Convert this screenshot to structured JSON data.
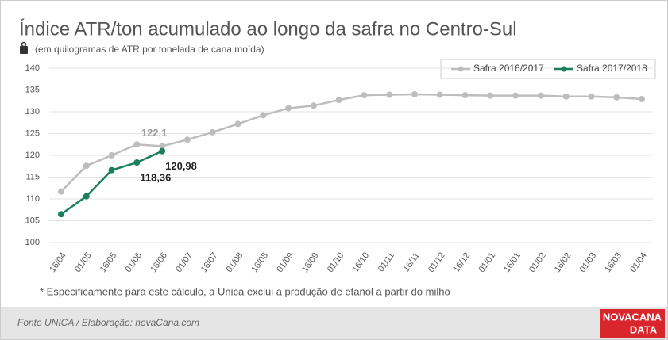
{
  "chart_data": {
    "type": "line",
    "title": "Índice ATR/ton acumulado ao longo da safra no Centro-Sul",
    "subtitle": "(em quilogramas de ATR por tonelada de cana moída)",
    "note": "* Especificamente para este cálculo, a Unica exclui a produção de etanol a partir do milho",
    "source": "Fonte UNICA / Elaboração: novaCana.com",
    "logo": [
      "NOVACANA",
      "DATA"
    ],
    "categories": [
      "16/04",
      "01/05",
      "16/05",
      "01/06",
      "16/06",
      "01/07",
      "16/07",
      "01/08",
      "16/08",
      "01/09",
      "16/09",
      "01/10",
      "16/10",
      "01/11",
      "16/11",
      "01/12",
      "16/12",
      "01/01",
      "16/01",
      "01/02",
      "16/02",
      "01/03",
      "16/03",
      "01/04"
    ],
    "series": [
      {
        "name": "Safra 2016/2017",
        "color": "#bdbdbd",
        "values": [
          111.7,
          117.6,
          120.0,
          122.5,
          122.1,
          123.6,
          125.3,
          127.2,
          129.2,
          130.8,
          131.4,
          132.7,
          133.8,
          133.9,
          134.0,
          133.9,
          133.8,
          133.7,
          133.7,
          133.7,
          133.5,
          133.5,
          133.3,
          132.9
        ],
        "value_labels": [
          null,
          null,
          null,
          null,
          "122,1",
          null,
          null,
          null,
          null,
          null,
          null,
          null,
          null,
          null,
          null,
          null,
          null,
          null,
          null,
          null,
          null,
          null,
          null,
          null
        ]
      },
      {
        "name": "Safra 2017/2018",
        "color": "#1a7f5a",
        "values": [
          106.5,
          110.6,
          116.6,
          118.36,
          120.98,
          null,
          null,
          null,
          null,
          null,
          null,
          null,
          null,
          null,
          null,
          null,
          null,
          null,
          null,
          null,
          null,
          null,
          null,
          null
        ],
        "value_labels": [
          null,
          null,
          null,
          "118,36",
          "120,98",
          null,
          null,
          null,
          null,
          null,
          null,
          null,
          null,
          null,
          null,
          null,
          null,
          null,
          null,
          null,
          null,
          null,
          null,
          null
        ]
      }
    ],
    "ylim": [
      100,
      140
    ],
    "yticks": [
      100,
      105,
      110,
      115,
      120,
      125,
      130,
      135,
      140
    ],
    "grid": true,
    "legend": "top-right"
  }
}
